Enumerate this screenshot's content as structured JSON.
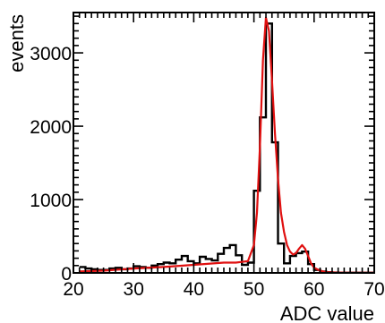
{
  "chart_data": {
    "type": "line",
    "title": "",
    "xlabel": "ADC value",
    "ylabel": "events",
    "xlim": [
      20,
      70
    ],
    "ylim": [
      0,
      3550
    ],
    "x_ticks": [
      20,
      30,
      40,
      50,
      60,
      70
    ],
    "y_ticks": [
      0,
      1000,
      2000,
      3000
    ],
    "grid": false,
    "legend": "none",
    "histogram": {
      "name": "",
      "bin_width": 1,
      "bin_edges_start": 21,
      "color": "#000000",
      "values": [
        80,
        60,
        50,
        40,
        40,
        60,
        70,
        50,
        60,
        90,
        80,
        70,
        100,
        120,
        140,
        130,
        180,
        230,
        160,
        130,
        220,
        190,
        170,
        260,
        340,
        380,
        240,
        110,
        140,
        1120,
        2120,
        3400,
        1780,
        400,
        130,
        230,
        270,
        290,
        120,
        40,
        20,
        10,
        5,
        3,
        2,
        2,
        2,
        2,
        2
      ]
    },
    "fit": {
      "name": "",
      "color": "#e01010",
      "x": [
        21,
        25,
        30,
        35,
        40,
        45,
        47,
        48,
        49,
        50,
        50.5,
        51,
        51.5,
        52,
        52.5,
        53,
        53.5,
        54,
        54.5,
        55,
        55.5,
        56,
        56.5,
        57,
        57.5,
        58,
        58.5,
        59,
        59.5,
        60,
        61,
        62,
        64,
        66,
        68,
        70
      ],
      "y": [
        20,
        30,
        60,
        80,
        110,
        140,
        140,
        150,
        160,
        380,
        820,
        1720,
        2900,
        3480,
        3300,
        2620,
        1900,
        1280,
        820,
        560,
        380,
        290,
        250,
        270,
        330,
        380,
        330,
        230,
        130,
        70,
        30,
        10,
        4,
        2,
        1,
        1
      ]
    }
  }
}
